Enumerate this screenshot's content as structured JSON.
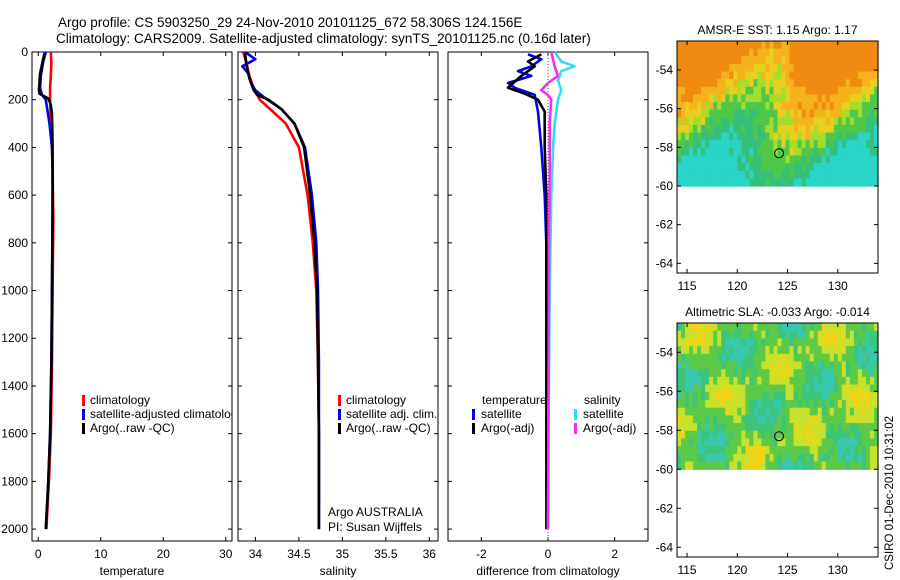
{
  "title_line1": "Argo profile: CS 5903250_29 24-Nov-2010 20101125_672 58.306S 124.156E",
  "title_line2": "Climatology: CARS2009. Satellite-adjusted climatology: synTS_20101125.nc (0.16d later)",
  "side_label": "CSIRO 01-Dec-2010 10:31:02",
  "colors": {
    "climatology": "#ff0000",
    "satellite": "#0000ee",
    "argo": "#000000",
    "sal_satellite": "#33ddee",
    "sal_argo": "#ee33ee"
  },
  "chart_data": [
    {
      "type": "line",
      "id": "temperature",
      "xlabel": "temperature",
      "xlim": [
        -1,
        31
      ],
      "ylim": [
        2050,
        0
      ],
      "xticks": [
        0,
        10,
        20,
        30
      ],
      "xtick_labels": [
        "0",
        "10",
        "20",
        "30"
      ],
      "yticks": [
        0,
        200,
        400,
        600,
        800,
        1000,
        1200,
        1400,
        1600,
        1800,
        2000
      ],
      "ytick_labels": [
        "0",
        "200",
        "400",
        "600",
        "800",
        "1000",
        "1200",
        "1400",
        "1600",
        "1800",
        "2000"
      ],
      "legend": [
        "climatology",
        "satellite-adjusted climatology",
        "Argo(..raw -QC)"
      ],
      "series": [
        {
          "name": "climatology",
          "color": "climatology",
          "points": [
            [
              2.0,
              0
            ],
            [
              2.1,
              50
            ],
            [
              2.0,
              100
            ],
            [
              1.9,
              150
            ],
            [
              1.9,
              200
            ],
            [
              2.0,
              300
            ],
            [
              2.2,
              400
            ],
            [
              2.3,
              500
            ],
            [
              2.4,
              700
            ],
            [
              2.3,
              1000
            ],
            [
              2.2,
              1300
            ],
            [
              2.0,
              1600
            ],
            [
              1.7,
              1800
            ],
            [
              1.3,
              2000
            ]
          ]
        },
        {
          "name": "satellite-adjusted climatology",
          "color": "satellite",
          "points": [
            [
              1.2,
              0
            ],
            [
              0.8,
              40
            ],
            [
              0.4,
              100
            ],
            [
              0.3,
              150
            ],
            [
              0.6,
              180
            ],
            [
              1.2,
              200
            ],
            [
              1.8,
              300
            ],
            [
              2.2,
              400
            ],
            [
              2.3,
              500
            ],
            [
              2.3,
              700
            ],
            [
              2.2,
              1000
            ],
            [
              2.1,
              1300
            ],
            [
              1.9,
              1600
            ],
            [
              1.6,
              1800
            ],
            [
              1.2,
              2000
            ]
          ]
        },
        {
          "name": "Argo(..raw -QC)",
          "color": "argo",
          "points": [
            [
              1.0,
              5
            ],
            [
              0.7,
              40
            ],
            [
              0.3,
              90
            ],
            [
              0.1,
              160
            ],
            [
              0.2,
              175
            ],
            [
              1.6,
              195
            ],
            [
              2.0,
              220
            ],
            [
              2.2,
              260
            ],
            [
              2.3,
              400
            ],
            [
              2.3,
              600
            ],
            [
              2.2,
              1000
            ],
            [
              2.1,
              1300
            ],
            [
              1.9,
              1600
            ],
            [
              1.6,
              1800
            ],
            [
              1.2,
              2000
            ]
          ]
        }
      ]
    },
    {
      "type": "line",
      "id": "salinity",
      "xlabel": "salinity",
      "xlim": [
        33.8,
        36.1
      ],
      "ylim": [
        2050,
        0
      ],
      "xticks": [
        34,
        34.5,
        35,
        35.5,
        36
      ],
      "xtick_labels": [
        "34",
        "34.5",
        "35",
        "35.5",
        "36"
      ],
      "legend": [
        "climatology",
        "satellite adj. clim.",
        "Argo(..raw -QC)"
      ],
      "annotations": [
        "Argo AUSTRALIA",
        "PI: Susan Wijffels"
      ],
      "series": [
        {
          "name": "climatology",
          "color": "climatology",
          "points": [
            [
              33.86,
              0
            ],
            [
              33.9,
              50
            ],
            [
              33.93,
              100
            ],
            [
              33.98,
              150
            ],
            [
              34.05,
              200
            ],
            [
              34.2,
              250
            ],
            [
              34.35,
              300
            ],
            [
              34.5,
              400
            ],
            [
              34.6,
              600
            ],
            [
              34.66,
              800
            ],
            [
              34.7,
              1000
            ],
            [
              34.72,
              1300
            ],
            [
              34.73,
              1600
            ],
            [
              34.73,
              1900
            ]
          ]
        },
        {
          "name": "satellite adj. clim.",
          "color": "satellite",
          "points": [
            [
              33.88,
              0
            ],
            [
              34.0,
              30
            ],
            [
              33.85,
              60
            ],
            [
              33.92,
              90
            ],
            [
              33.95,
              130
            ],
            [
              34.0,
              160
            ],
            [
              34.1,
              190
            ],
            [
              34.3,
              240
            ],
            [
              34.45,
              300
            ],
            [
              34.57,
              400
            ],
            [
              34.65,
              600
            ],
            [
              34.7,
              800
            ],
            [
              34.72,
              1000
            ],
            [
              34.73,
              1300
            ],
            [
              34.73,
              1600
            ],
            [
              34.73,
              2000
            ]
          ]
        },
        {
          "name": "Argo(..raw -QC)",
          "color": "argo",
          "points": [
            [
              33.88,
              5
            ],
            [
              33.9,
              60
            ],
            [
              33.93,
              110
            ],
            [
              33.98,
              160
            ],
            [
              34.02,
              180
            ],
            [
              34.15,
              200
            ],
            [
              34.3,
              240
            ],
            [
              34.45,
              300
            ],
            [
              34.56,
              400
            ],
            [
              34.63,
              600
            ],
            [
              34.68,
              800
            ],
            [
              34.71,
              1000
            ],
            [
              34.72,
              1300
            ],
            [
              34.73,
              1600
            ],
            [
              34.73,
              2000
            ]
          ]
        }
      ]
    },
    {
      "type": "line",
      "id": "difference",
      "xlabel": "difference from climatology",
      "xlim": [
        -3,
        3
      ],
      "ylim": [
        2050,
        0
      ],
      "xticks": [
        -2,
        0,
        2
      ],
      "xtick_labels": [
        "-2",
        "0",
        "2"
      ],
      "legend_titles": [
        "temperature",
        "salinity"
      ],
      "legend": [
        "satellite",
        "Argo(-adj)",
        "satellite",
        "Argo(-adj)"
      ],
      "series": [
        {
          "name": "temperature satellite",
          "color": "satellite",
          "points": [
            [
              -0.6,
              10
            ],
            [
              -0.2,
              30
            ],
            [
              -0.5,
              60
            ],
            [
              -0.9,
              80
            ],
            [
              -0.5,
              100
            ],
            [
              -1.2,
              130
            ],
            [
              -1.0,
              150
            ],
            [
              -0.4,
              180
            ],
            [
              -0.3,
              250
            ],
            [
              -0.2,
              400
            ],
            [
              -0.1,
              600
            ],
            [
              -0.05,
              800
            ],
            [
              -0.05,
              1200
            ],
            [
              -0.05,
              1600
            ],
            [
              -0.05,
              2000
            ]
          ]
        },
        {
          "name": "temperature Argo(-adj)",
          "color": "argo",
          "points": [
            [
              -0.2,
              10
            ],
            [
              -0.6,
              40
            ],
            [
              -0.4,
              60
            ],
            [
              -0.8,
              100
            ],
            [
              -1.2,
              150
            ],
            [
              -0.7,
              175
            ],
            [
              -0.3,
              200
            ],
            [
              -0.1,
              250
            ],
            [
              -0.1,
              400
            ],
            [
              -0.05,
              600
            ],
            [
              -0.05,
              1000
            ],
            [
              -0.03,
              1500
            ],
            [
              -0.02,
              2000
            ]
          ]
        },
        {
          "name": "salinity satellite",
          "color": "sal_satellite",
          "points": [
            [
              0.2,
              0
            ],
            [
              0.4,
              40
            ],
            [
              0.8,
              60
            ],
            [
              0.4,
              80
            ],
            [
              0.3,
              120
            ],
            [
              0.4,
              160
            ],
            [
              0.3,
              200
            ],
            [
              0.2,
              300
            ],
            [
              0.15,
              400
            ],
            [
              0.1,
              600
            ],
            [
              0.05,
              1000
            ],
            [
              0.02,
              1500
            ],
            [
              0.0,
              2000
            ]
          ]
        },
        {
          "name": "salinity Argo(-adj)",
          "color": "sal_argo",
          "points": [
            [
              0.1,
              0
            ],
            [
              0.2,
              60
            ],
            [
              0.3,
              100
            ],
            [
              0.0,
              130
            ],
            [
              -0.2,
              160
            ],
            [
              0.0,
              180
            ],
            [
              0.1,
              200
            ],
            [
              0.05,
              300
            ],
            [
              0.05,
              500
            ],
            [
              0.03,
              800
            ],
            [
              0.02,
              1200
            ],
            [
              0.0,
              2000
            ]
          ]
        }
      ]
    },
    {
      "type": "heatmap",
      "id": "sst_map",
      "title": "AMSR-E SST: 1.15 Argo: 1.17",
      "xlim": [
        114,
        134
      ],
      "ylim": [
        -64.5,
        -52.5
      ],
      "data_extent_lat": [
        -60,
        -52.5
      ],
      "xticks": [
        115,
        120,
        125,
        130
      ],
      "xtick_labels": [
        "115",
        "120",
        "125",
        "130"
      ],
      "yticks": [
        -54,
        -56,
        -58,
        -60,
        -62,
        -64
      ],
      "ytick_labels": [
        "-54",
        "-56",
        "-58",
        "-60",
        "-62",
        "-64"
      ],
      "marker": [
        124.156,
        -58.306
      ]
    },
    {
      "type": "heatmap",
      "id": "sla_map",
      "title": "Altimetric SLA: -0.033 Argo: -0.014",
      "xlim": [
        114,
        134
      ],
      "ylim": [
        -64.5,
        -52.5
      ],
      "data_extent_lat": [
        -60,
        -52.5
      ],
      "xticks": [
        115,
        120,
        125,
        130
      ],
      "xtick_labels": [
        "115",
        "120",
        "125",
        "130"
      ],
      "yticks": [
        -54,
        -56,
        -58,
        -60,
        -62,
        -64
      ],
      "ytick_labels": [
        "-54",
        "-56",
        "-58",
        "-60",
        "-62",
        "-64"
      ],
      "marker": [
        124.156,
        -58.306
      ]
    }
  ]
}
